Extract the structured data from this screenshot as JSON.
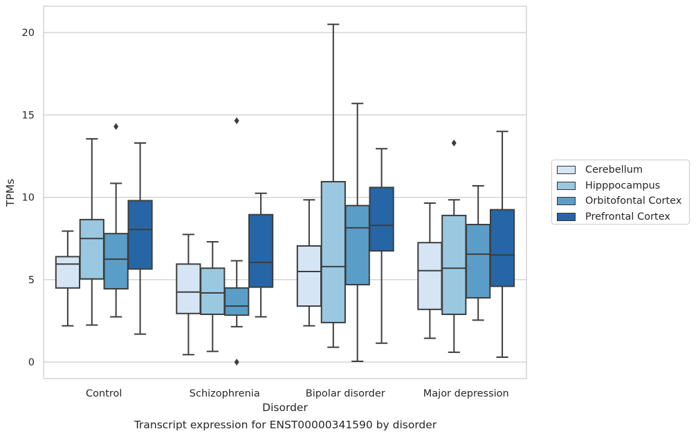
{
  "caption": "Transcript expression for ENST00000341590 by disorder",
  "chart_data": {
    "type": "box",
    "xlabel": "Disorder",
    "ylabel": "TPMs",
    "ylim": [
      -1,
      21.6
    ],
    "yticks": [
      0,
      5,
      10,
      15,
      20
    ],
    "grid": "horizontal",
    "legend_position": "right",
    "categories": [
      "Control",
      "Schizophrenia",
      "Bipolar disorder",
      "Major depression"
    ],
    "series": [
      {
        "name": "Cerebellum",
        "color": "#d6e5f4",
        "boxes": [
          {
            "whislo": 2.2,
            "q1": 4.5,
            "med": 5.95,
            "q3": 6.4,
            "whishi": 7.95,
            "fliers": []
          },
          {
            "whislo": 0.45,
            "q1": 2.95,
            "med": 4.25,
            "q3": 5.95,
            "whishi": 7.75,
            "fliers": []
          },
          {
            "whislo": 2.2,
            "q1": 3.4,
            "med": 5.5,
            "q3": 7.05,
            "whishi": 9.85,
            "fliers": []
          },
          {
            "whislo": 1.45,
            "q1": 3.2,
            "med": 5.55,
            "q3": 7.25,
            "whishi": 9.65,
            "fliers": []
          }
        ]
      },
      {
        "name": "Hipppocampus",
        "color": "#9ac8e0",
        "boxes": [
          {
            "whislo": 2.25,
            "q1": 5.05,
            "med": 7.5,
            "q3": 8.65,
            "whishi": 13.55,
            "fliers": []
          },
          {
            "whislo": 0.65,
            "q1": 2.9,
            "med": 4.2,
            "q3": 5.7,
            "whishi": 7.3,
            "fliers": []
          },
          {
            "whislo": 0.9,
            "q1": 2.4,
            "med": 5.8,
            "q3": 10.95,
            "whishi": 20.5,
            "fliers": []
          },
          {
            "whislo": 0.6,
            "q1": 2.9,
            "med": 5.7,
            "q3": 8.9,
            "whishi": 9.85,
            "fliers": []
          }
        ]
      },
      {
        "name": "Orbitofontal Cortex",
        "color": "#5a9dc8",
        "boxes": [
          {
            "whislo": 2.75,
            "q1": 4.45,
            "med": 6.25,
            "q3": 7.8,
            "whishi": 10.85,
            "fliers": [
              14.3
            ]
          },
          {
            "whislo": 2.15,
            "q1": 2.85,
            "med": 3.4,
            "q3": 4.5,
            "whishi": 6.15,
            "fliers": [
              0.0,
              14.65
            ]
          },
          {
            "whislo": 0.05,
            "q1": 4.7,
            "med": 8.15,
            "q3": 9.5,
            "whishi": 15.7,
            "fliers": []
          },
          {
            "whislo": 2.55,
            "q1": 3.9,
            "med": 6.55,
            "q3": 8.35,
            "whishi": 10.7,
            "fliers": []
          }
        ]
      },
      {
        "name": "Prefrontal Cortex",
        "color": "#2766a6",
        "boxes": [
          {
            "whislo": 1.7,
            "q1": 5.65,
            "med": 8.05,
            "q3": 9.8,
            "whishi": 13.3,
            "fliers": []
          },
          {
            "whislo": 2.75,
            "q1": 4.55,
            "med": 6.05,
            "q3": 8.95,
            "whishi": 10.25,
            "fliers": []
          },
          {
            "whislo": 1.15,
            "q1": 6.75,
            "med": 8.3,
            "q3": 10.6,
            "whishi": 12.95,
            "fliers": []
          },
          {
            "whislo": 0.3,
            "q1": 4.6,
            "med": 6.5,
            "q3": 9.25,
            "whishi": 14.0,
            "fliers": []
          }
        ]
      }
    ],
    "extra_fliers": [
      {
        "category": "Major depression",
        "series": "Cerebellum",
        "value": 13.3
      }
    ]
  }
}
